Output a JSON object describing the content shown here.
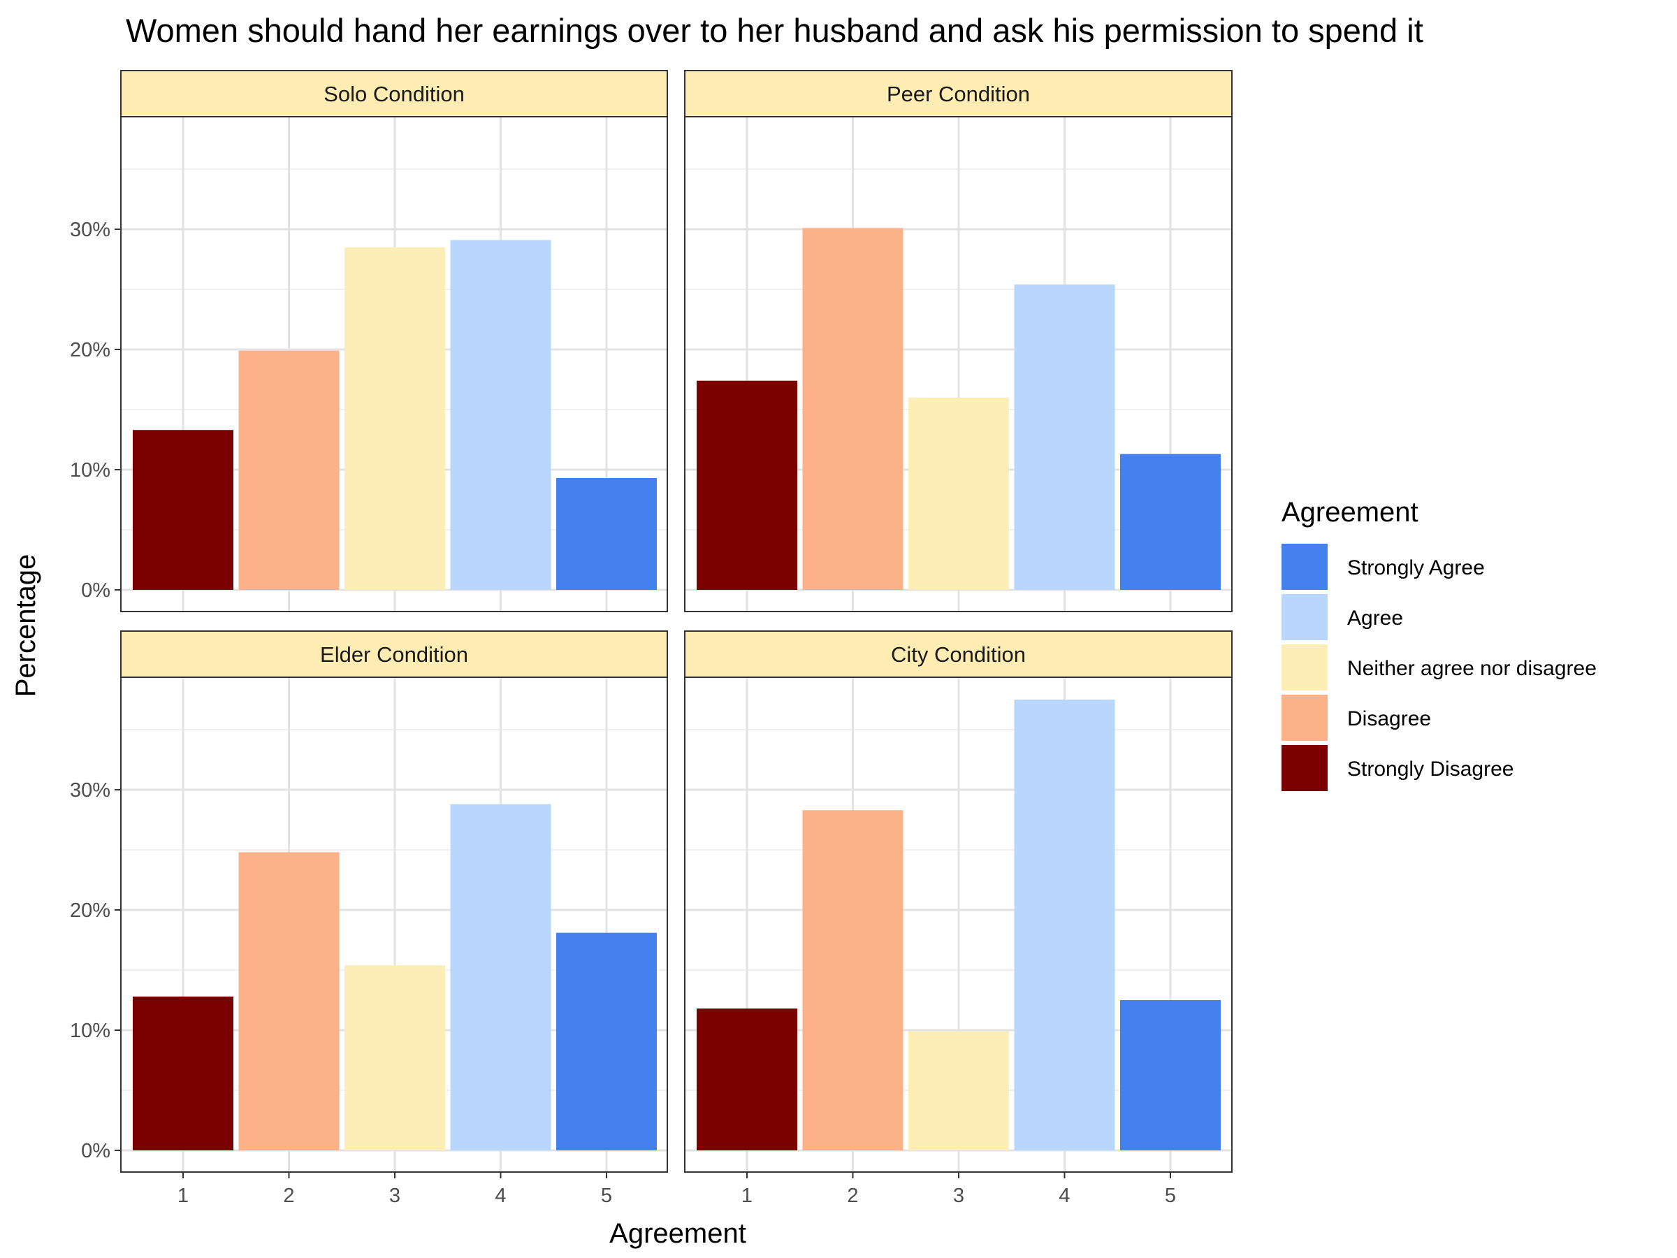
{
  "chart_data": {
    "type": "bar",
    "title": "Women should hand her earnings over to her husband and ask his permission to spend it",
    "xlabel": "Agreement",
    "ylabel": "Percentage",
    "categories": [
      "1",
      "2",
      "3",
      "4",
      "5"
    ],
    "y_ticks": [
      "0%",
      "10%",
      "20%",
      "30%"
    ],
    "ylim": [
      0,
      0.4
    ],
    "grid": true,
    "legend_position": "right",
    "legend": {
      "title": "Agreement",
      "entries": [
        {
          "label": "Strongly Agree",
          "color": "#4480ee"
        },
        {
          "label": "Agree",
          "color": "#b9d7fc"
        },
        {
          "label": "Neither agree nor disagree",
          "color": "#fdedb7"
        },
        {
          "label": "Disagree",
          "color": "#fcb189"
        },
        {
          "label": "Strongly Disagree",
          "color": "#7b0000"
        }
      ]
    },
    "bar_colors": [
      "#7b0000",
      "#fcb189",
      "#fdedb7",
      "#b9d7fc",
      "#4480ee"
    ],
    "panels": [
      {
        "label": "Solo Condition",
        "values": [
          0.133,
          0.199,
          0.285,
          0.291,
          0.093
        ]
      },
      {
        "label": "Peer Condition",
        "values": [
          0.174,
          0.301,
          0.16,
          0.254,
          0.113
        ]
      },
      {
        "label": "Elder Condition",
        "values": [
          0.128,
          0.248,
          0.154,
          0.288,
          0.181
        ]
      },
      {
        "label": "City Condition",
        "values": [
          0.118,
          0.283,
          0.099,
          0.375,
          0.125
        ]
      }
    ]
  }
}
